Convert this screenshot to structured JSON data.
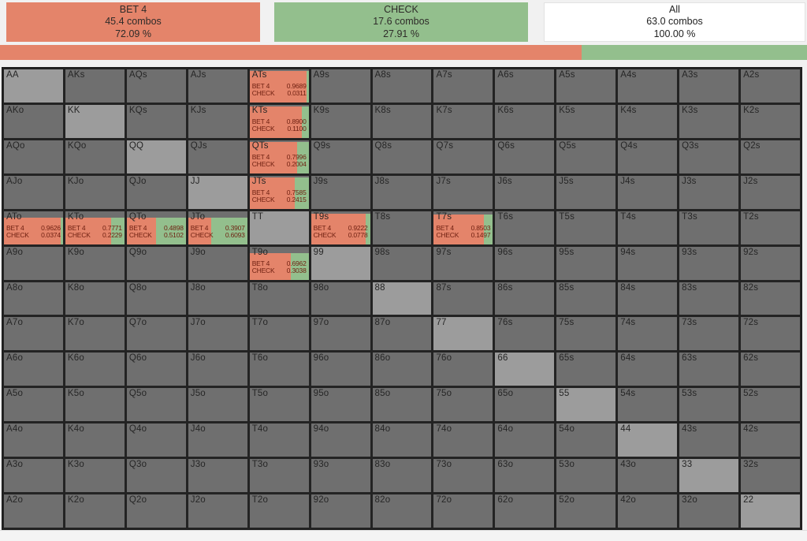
{
  "header": {
    "boxes": [
      {
        "id": "bet4",
        "label": "BET 4",
        "combos": "45.4 combos",
        "percent": "72.09 %"
      },
      {
        "id": "check",
        "label": "CHECK",
        "combos": "17.6 combos",
        "percent": "27.91 %"
      },
      {
        "id": "all",
        "label": "All",
        "combos": "63.0 combos",
        "percent": "100.00 %"
      }
    ]
  },
  "bar": {
    "bet4_pct": 72.09,
    "check_pct": 27.91
  },
  "actions": {
    "bet_label": "BET 4",
    "check_label": "CHECK"
  },
  "colors": {
    "bet4": "#e4846a",
    "check": "#93bf8d",
    "cell_bg": "#6f6f6f",
    "pair_bg": "#9c9c9c",
    "strategy_text": "#6e1f10"
  },
  "cells": [
    {
      "h": "AA",
      "k": "p"
    },
    {
      "h": "AKs"
    },
    {
      "h": "AQs"
    },
    {
      "h": "AJs"
    },
    {
      "h": "ATs",
      "k": "s",
      "w": 0.95,
      "b": "0.9689",
      "c": "0.0311"
    },
    {
      "h": "A9s"
    },
    {
      "h": "A8s"
    },
    {
      "h": "A7s"
    },
    {
      "h": "A6s"
    },
    {
      "h": "A5s"
    },
    {
      "h": "A4s"
    },
    {
      "h": "A3s"
    },
    {
      "h": "A2s"
    },
    {
      "h": "AKo"
    },
    {
      "h": "KK",
      "k": "p"
    },
    {
      "h": "KQs"
    },
    {
      "h": "KJs"
    },
    {
      "h": "KTs",
      "k": "s",
      "w": 0.95,
      "b": "0.8900",
      "c": "0.1100"
    },
    {
      "h": "K9s"
    },
    {
      "h": "K8s"
    },
    {
      "h": "K7s"
    },
    {
      "h": "K6s"
    },
    {
      "h": "K5s"
    },
    {
      "h": "K4s"
    },
    {
      "h": "K3s"
    },
    {
      "h": "K2s"
    },
    {
      "h": "AQo"
    },
    {
      "h": "KQo"
    },
    {
      "h": "QQ",
      "k": "p"
    },
    {
      "h": "QJs"
    },
    {
      "h": "QTs",
      "k": "s",
      "w": 0.95,
      "b": "0.7996",
      "c": "0.2004"
    },
    {
      "h": "Q9s"
    },
    {
      "h": "Q8s"
    },
    {
      "h": "Q7s"
    },
    {
      "h": "Q6s"
    },
    {
      "h": "Q5s"
    },
    {
      "h": "Q4s"
    },
    {
      "h": "Q3s"
    },
    {
      "h": "Q2s"
    },
    {
      "h": "AJo"
    },
    {
      "h": "KJo"
    },
    {
      "h": "QJo"
    },
    {
      "h": "JJ",
      "k": "p"
    },
    {
      "h": "JTs",
      "k": "s",
      "w": 0.95,
      "b": "0.7585",
      "c": "0.2415"
    },
    {
      "h": "J9s"
    },
    {
      "h": "J8s"
    },
    {
      "h": "J7s"
    },
    {
      "h": "J6s"
    },
    {
      "h": "J5s"
    },
    {
      "h": "J4s"
    },
    {
      "h": "J3s"
    },
    {
      "h": "J2s"
    },
    {
      "h": "ATo",
      "k": "s",
      "w": 0.8,
      "b": "0.9626",
      "c": "0.0374"
    },
    {
      "h": "KTo",
      "k": "s",
      "w": 0.8,
      "b": "0.7771",
      "c": "0.2229"
    },
    {
      "h": "QTo",
      "k": "s",
      "w": 0.8,
      "b": "0.4898",
      "c": "0.5102"
    },
    {
      "h": "JTo",
      "k": "s",
      "w": 0.8,
      "b": "0.3907",
      "c": "0.6093"
    },
    {
      "h": "TT",
      "k": "p"
    },
    {
      "h": "T9s",
      "k": "s",
      "w": 0.93,
      "b": "0.9222",
      "c": "0.0778"
    },
    {
      "h": "T8s"
    },
    {
      "h": "T7s",
      "k": "s",
      "w": 0.9,
      "b": "0.8503",
      "c": "0.1497"
    },
    {
      "h": "T6s"
    },
    {
      "h": "T5s"
    },
    {
      "h": "T4s"
    },
    {
      "h": "T3s"
    },
    {
      "h": "T2s"
    },
    {
      "h": "A9o"
    },
    {
      "h": "K9o"
    },
    {
      "h": "Q9o"
    },
    {
      "h": "J9o"
    },
    {
      "h": "T9o",
      "k": "s",
      "w": 0.8,
      "b": "0.6962",
      "c": "0.3038"
    },
    {
      "h": "99",
      "k": "p"
    },
    {
      "h": "98s"
    },
    {
      "h": "97s"
    },
    {
      "h": "96s"
    },
    {
      "h": "95s"
    },
    {
      "h": "94s"
    },
    {
      "h": "93s"
    },
    {
      "h": "92s"
    },
    {
      "h": "A8o"
    },
    {
      "h": "K8o"
    },
    {
      "h": "Q8o"
    },
    {
      "h": "J8o"
    },
    {
      "h": "T8o"
    },
    {
      "h": "98o"
    },
    {
      "h": "88",
      "k": "p"
    },
    {
      "h": "87s"
    },
    {
      "h": "86s"
    },
    {
      "h": "85s"
    },
    {
      "h": "84s"
    },
    {
      "h": "83s"
    },
    {
      "h": "82s"
    },
    {
      "h": "A7o"
    },
    {
      "h": "K7o"
    },
    {
      "h": "Q7o"
    },
    {
      "h": "J7o"
    },
    {
      "h": "T7o"
    },
    {
      "h": "97o"
    },
    {
      "h": "87o"
    },
    {
      "h": "77",
      "k": "p"
    },
    {
      "h": "76s"
    },
    {
      "h": "75s"
    },
    {
      "h": "74s"
    },
    {
      "h": "73s"
    },
    {
      "h": "72s"
    },
    {
      "h": "A6o"
    },
    {
      "h": "K6o"
    },
    {
      "h": "Q6o"
    },
    {
      "h": "J6o"
    },
    {
      "h": "T6o"
    },
    {
      "h": "96o"
    },
    {
      "h": "86o"
    },
    {
      "h": "76o"
    },
    {
      "h": "66",
      "k": "p"
    },
    {
      "h": "65s"
    },
    {
      "h": "64s"
    },
    {
      "h": "63s"
    },
    {
      "h": "62s"
    },
    {
      "h": "A5o"
    },
    {
      "h": "K5o"
    },
    {
      "h": "Q5o"
    },
    {
      "h": "J5o"
    },
    {
      "h": "T5o"
    },
    {
      "h": "95o"
    },
    {
      "h": "85o"
    },
    {
      "h": "75o"
    },
    {
      "h": "65o"
    },
    {
      "h": "55",
      "k": "p"
    },
    {
      "h": "54s"
    },
    {
      "h": "53s"
    },
    {
      "h": "52s"
    },
    {
      "h": "A4o"
    },
    {
      "h": "K4o"
    },
    {
      "h": "Q4o"
    },
    {
      "h": "J4o"
    },
    {
      "h": "T4o"
    },
    {
      "h": "94o"
    },
    {
      "h": "84o"
    },
    {
      "h": "74o"
    },
    {
      "h": "64o"
    },
    {
      "h": "54o"
    },
    {
      "h": "44",
      "k": "p"
    },
    {
      "h": "43s"
    },
    {
      "h": "42s"
    },
    {
      "h": "A3o"
    },
    {
      "h": "K3o"
    },
    {
      "h": "Q3o"
    },
    {
      "h": "J3o"
    },
    {
      "h": "T3o"
    },
    {
      "h": "93o"
    },
    {
      "h": "83o"
    },
    {
      "h": "73o"
    },
    {
      "h": "63o"
    },
    {
      "h": "53o"
    },
    {
      "h": "43o"
    },
    {
      "h": "33",
      "k": "p"
    },
    {
      "h": "32s"
    },
    {
      "h": "A2o"
    },
    {
      "h": "K2o"
    },
    {
      "h": "Q2o"
    },
    {
      "h": "J2o"
    },
    {
      "h": "T2o"
    },
    {
      "h": "92o"
    },
    {
      "h": "82o"
    },
    {
      "h": "72o"
    },
    {
      "h": "62o"
    },
    {
      "h": "52o"
    },
    {
      "h": "42o"
    },
    {
      "h": "32o"
    },
    {
      "h": "22",
      "k": "p"
    }
  ]
}
